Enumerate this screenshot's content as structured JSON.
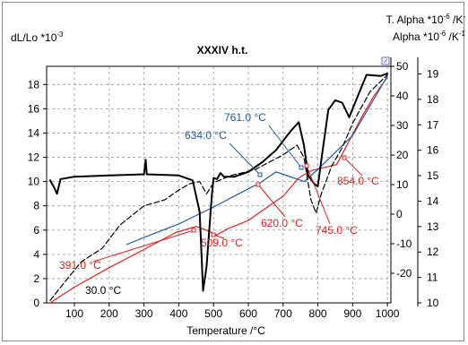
{
  "chart_data": {
    "type": "line",
    "title": "XXXIV h.t.",
    "xlabel": "Temperature /°C",
    "xlim": [
      20,
      1010
    ],
    "xticks": [
      100,
      200,
      300,
      400,
      500,
      600,
      700,
      800,
      900,
      1000
    ],
    "grid": true,
    "axes": {
      "left": {
        "label_main": "dL/Lo *10",
        "label_exp": "-3",
        "range": [
          0,
          19.5
        ],
        "ticks": [
          0,
          2,
          4,
          6,
          8,
          10,
          12,
          14,
          16,
          18
        ]
      },
      "right_inner": {
        "label_main": "Alpha *10",
        "label_exp1": "-6",
        "label_mid": " /K",
        "label_exp2": "-1",
        "range": [
          -30,
          50
        ],
        "ticks": [
          -20,
          -10,
          0,
          10,
          20,
          30,
          40,
          50
        ]
      },
      "right_outer": {
        "label_main": "T. Alpha *10",
        "label_exp1": "-6",
        "label_mid": " /K",
        "label_exp2": "-",
        "range": [
          10,
          19.3
        ],
        "ticks": [
          10,
          11,
          12,
          13,
          14,
          15,
          16,
          17,
          18,
          19
        ]
      }
    },
    "series": [
      {
        "color": "#e02020",
        "style": "solid",
        "axis": "left",
        "points": [
          [
            30,
            0
          ],
          [
            100,
            1.3
          ],
          [
            200,
            2.9
          ],
          [
            300,
            4.4
          ],
          [
            391,
            5.8
          ],
          [
            450,
            6.3
          ],
          [
            480,
            6.0
          ],
          [
            509,
            5.6
          ],
          [
            540,
            6.1
          ],
          [
            600,
            6.8
          ],
          [
            650,
            7.8
          ],
          [
            700,
            8.8
          ],
          [
            745,
            10.3
          ],
          [
            780,
            10.9
          ],
          [
            854,
            11.4
          ],
          [
            880,
            12.8
          ],
          [
            920,
            15.0
          ],
          [
            960,
            17.0
          ],
          [
            1000,
            18.6
          ]
        ]
      },
      {
        "color": "#1e5aa8",
        "style": "solid",
        "axis": "left",
        "points": [
          [
            250,
            4.8
          ],
          [
            300,
            5.4
          ],
          [
            400,
            6.5
          ],
          [
            500,
            7.9
          ],
          [
            600,
            9.4
          ],
          [
            634,
            9.9
          ],
          [
            680,
            10.8
          ],
          [
            700,
            10.6
          ],
          [
            761,
            10.0
          ],
          [
            800,
            11.0
          ],
          [
            900,
            13.8
          ],
          [
            1000,
            18.7
          ]
        ]
      },
      {
        "color": "#000000",
        "style": "dashed",
        "axis": "left",
        "points": [
          [
            30,
            0.2
          ],
          [
            80,
            2.0
          ],
          [
            120,
            3.4
          ],
          [
            180,
            4.5
          ],
          [
            230,
            6.4
          ],
          [
            300,
            8.0
          ],
          [
            360,
            8.5
          ],
          [
            400,
            9.3
          ],
          [
            430,
            9.8
          ],
          [
            460,
            10.0
          ],
          [
            480,
            9.0
          ],
          [
            500,
            9.9
          ],
          [
            550,
            10.5
          ],
          [
            580,
            10.7
          ],
          [
            620,
            11.0
          ],
          [
            660,
            11.6
          ],
          [
            700,
            12.2
          ],
          [
            740,
            13.0
          ],
          [
            760,
            12.0
          ],
          [
            780,
            8.5
          ],
          [
            795,
            7.4
          ],
          [
            810,
            9.0
          ],
          [
            840,
            11.3
          ],
          [
            870,
            12.8
          ],
          [
            900,
            14.8
          ],
          [
            950,
            17.4
          ],
          [
            1000,
            18.8
          ]
        ]
      },
      {
        "color": "#000000",
        "style": "solid",
        "width": 2,
        "axis": "left",
        "points": [
          [
            30,
            10.1
          ],
          [
            40,
            9.6
          ],
          [
            50,
            9.0
          ],
          [
            60,
            10.2
          ],
          [
            100,
            10.4
          ],
          [
            200,
            10.5
          ],
          [
            300,
            10.6
          ],
          [
            305,
            11.8
          ],
          [
            308,
            10.6
          ],
          [
            400,
            10.5
          ],
          [
            440,
            10.1
          ],
          [
            460,
            7.5
          ],
          [
            470,
            1.0
          ],
          [
            480,
            3.0
          ],
          [
            495,
            8.8
          ],
          [
            500,
            10.3
          ],
          [
            510,
            10.2
          ],
          [
            520,
            10.7
          ],
          [
            530,
            10.4
          ],
          [
            560,
            10.4
          ],
          [
            600,
            10.8
          ],
          [
            640,
            11.6
          ],
          [
            680,
            12.6
          ],
          [
            720,
            14.1
          ],
          [
            745,
            14.9
          ],
          [
            760,
            13.0
          ],
          [
            772,
            10.5
          ],
          [
            790,
            9.8
          ],
          [
            800,
            9.6
          ],
          [
            812,
            12.2
          ],
          [
            830,
            15.9
          ],
          [
            850,
            16.7
          ],
          [
            870,
            16.5
          ],
          [
            890,
            15.3
          ],
          [
            900,
            16.0
          ],
          [
            940,
            18.8
          ],
          [
            980,
            18.7
          ],
          [
            1000,
            18.9
          ]
        ]
      }
    ],
    "annotations": [
      {
        "text": "30.0 °C",
        "color": "#000000"
      },
      {
        "text": "391.0 °C",
        "color": "#e02020"
      },
      {
        "text": "509.0 °C",
        "color": "#e02020"
      },
      {
        "text": "620.0 °C",
        "color": "#e02020"
      },
      {
        "text": "745.0 °C",
        "color": "#e02020"
      },
      {
        "text": "854.0 °C",
        "color": "#e02020"
      },
      {
        "text": "634.0 °C",
        "color": "#1e5aa8"
      },
      {
        "text": "761.0 °C",
        "color": "#1e5aa8"
      }
    ]
  }
}
